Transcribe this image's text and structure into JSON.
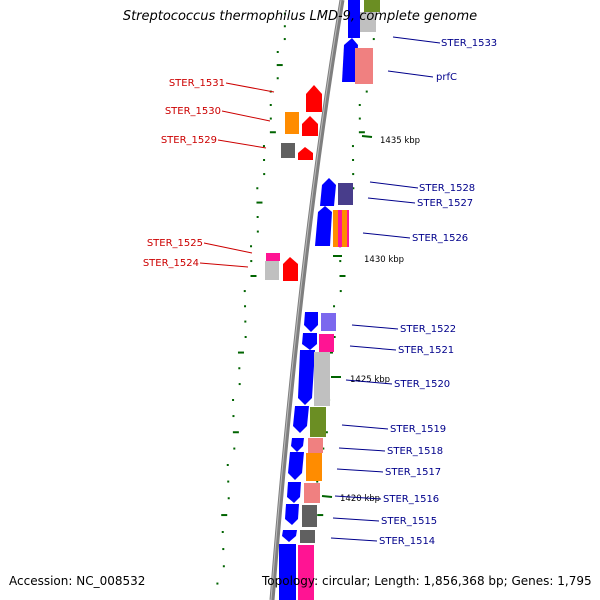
{
  "title": "Streptococcus thermophilus LMD-9, complete genome",
  "footer": {
    "accession": "Accession: NC_008532",
    "summary": "Topology: circular; Length: 1,856,368 bp; Genes: 1,795"
  },
  "colors": {
    "forward_label": "#00008b",
    "reverse_label": "#cc0000",
    "backbone": "#808080",
    "gc_dots": "#006400"
  },
  "tick_labels": [
    "1435 kbp",
    "1430 kbp",
    "1425 kbp",
    "1420 kbp"
  ],
  "genes_right": [
    {
      "name": "STER_1533"
    },
    {
      "name": "prfC"
    },
    {
      "name": "STER_1528"
    },
    {
      "name": "STER_1527"
    },
    {
      "name": "STER_1526"
    },
    {
      "name": "STER_1522"
    },
    {
      "name": "STER_1521"
    },
    {
      "name": "STER_1520"
    },
    {
      "name": "STER_1519"
    },
    {
      "name": "STER_1518"
    },
    {
      "name": "STER_1517"
    },
    {
      "name": "STER_1516"
    },
    {
      "name": "STER_1515"
    },
    {
      "name": "STER_1514"
    }
  ],
  "genes_left": [
    {
      "name": "STER_1531"
    },
    {
      "name": "STER_1530"
    },
    {
      "name": "STER_1529"
    },
    {
      "name": "STER_1525"
    },
    {
      "name": "STER_1524"
    }
  ]
}
